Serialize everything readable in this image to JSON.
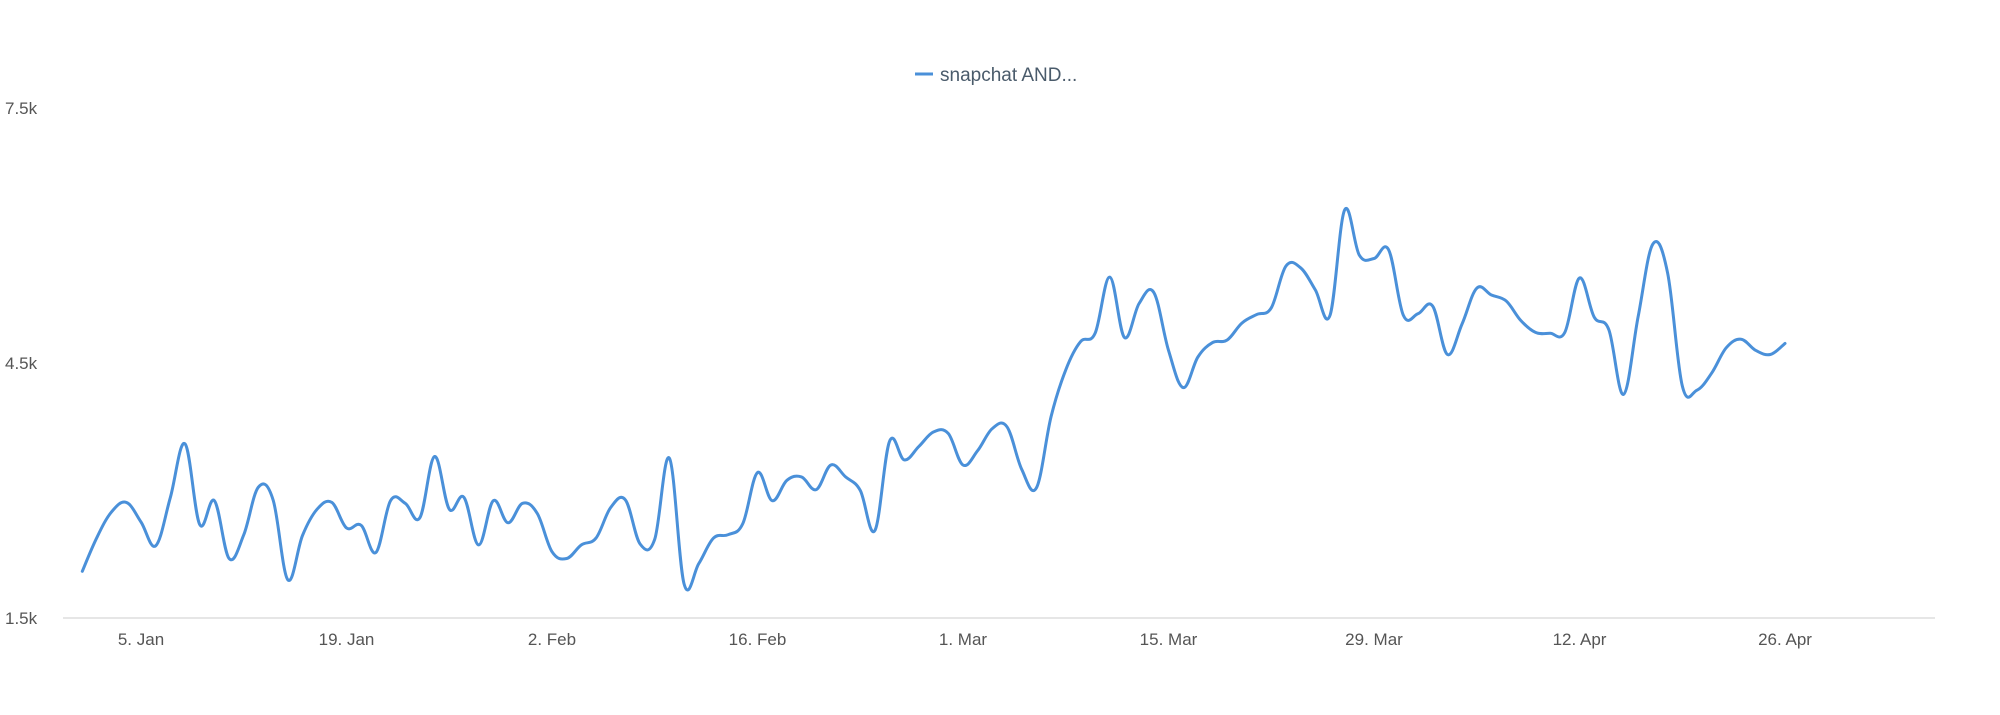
{
  "chart_data": {
    "type": "line",
    "legend": {
      "position": "top-center"
    },
    "grid": false,
    "x_ticks": [
      "5. Jan",
      "19. Jan",
      "2. Feb",
      "16. Feb",
      "1. Mar",
      "15. Mar",
      "29. Mar",
      "12. Apr",
      "26. Apr"
    ],
    "x_tick_days": [
      4,
      18,
      32,
      46,
      60,
      74,
      88,
      102,
      116
    ],
    "xlim_days": [
      0,
      124
    ],
    "y_ticks": [
      "7.5k",
      "4.5k",
      "1.5k"
    ],
    "y_tick_values": [
      7500,
      4500,
      1500
    ],
    "ylim": [
      1500,
      7500
    ],
    "colors": {
      "series": "#4a90d9",
      "axis": "#cccccc",
      "tick_text": "#555555",
      "legend_text": "#4a5b6b"
    },
    "series": [
      {
        "name": "snapchat AND...",
        "x_start": "1. Jan",
        "values": [
          2050,
          2450,
          2750,
          2860,
          2630,
          2350,
          2920,
          3550,
          2600,
          2880,
          2200,
          2480,
          3040,
          2890,
          1950,
          2470,
          2780,
          2860,
          2560,
          2590,
          2270,
          2880,
          2850,
          2680,
          3400,
          2780,
          2920,
          2360,
          2880,
          2620,
          2850,
          2730,
          2280,
          2200,
          2360,
          2440,
          2800,
          2890,
          2370,
          2430,
          3380,
          1900,
          2140,
          2440,
          2480,
          2610,
          3210,
          2880,
          3120,
          3160,
          3010,
          3300,
          3160,
          3000,
          2530,
          3580,
          3360,
          3520,
          3690,
          3670,
          3300,
          3470,
          3730,
          3750,
          3250,
          3030,
          3870,
          4420,
          4750,
          4850,
          5510,
          4800,
          5200,
          5330,
          4650,
          4210,
          4570,
          4740,
          4770,
          4970,
          5070,
          5150,
          5640,
          5620,
          5360,
          5060,
          6300,
          5770,
          5730,
          5830,
          5060,
          5080,
          5170,
          4600,
          4960,
          5380,
          5300,
          5230,
          5000,
          4860,
          4850,
          4860,
          5500,
          5040,
          4890,
          4130,
          5050,
          5900,
          5560,
          4230,
          4180,
          4380,
          4680,
          4780,
          4650,
          4600,
          4730
        ]
      }
    ]
  }
}
